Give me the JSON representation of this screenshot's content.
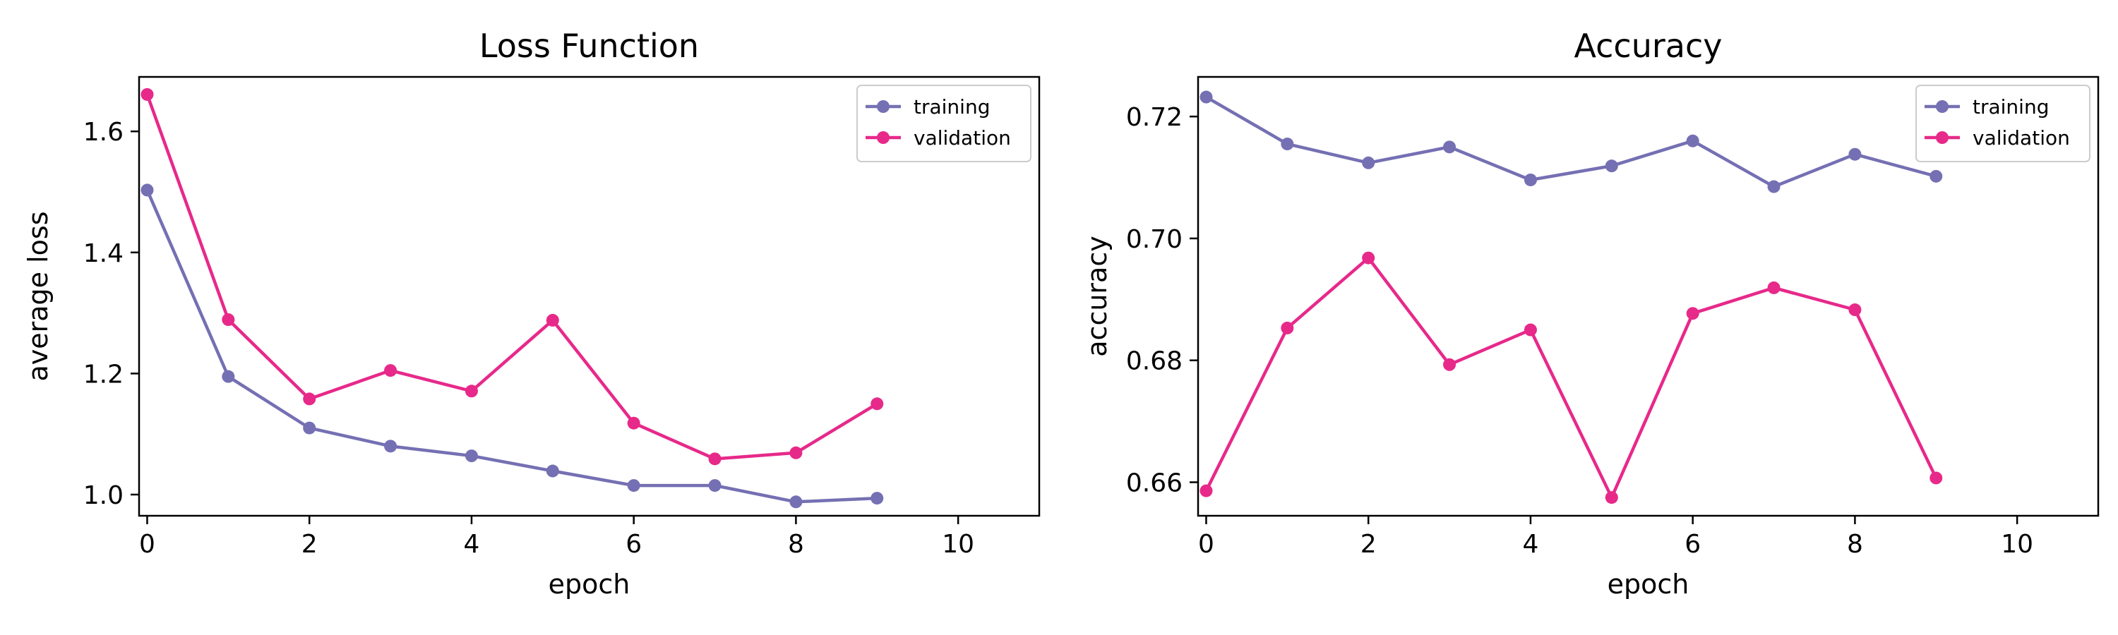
{
  "chart_data": [
    {
      "type": "line",
      "title": "Loss Function",
      "xlabel": "epoch",
      "ylabel": "average loss",
      "x": [
        0,
        1,
        2,
        3,
        4,
        5,
        6,
        7,
        8,
        9
      ],
      "xlim": [
        -0.1,
        11
      ],
      "ylim": [
        0.965,
        1.69
      ],
      "xticks": [
        0,
        2,
        4,
        6,
        8,
        10
      ],
      "yticks": [
        1.0,
        1.2,
        1.4,
        1.6
      ],
      "ytick_labels": [
        "1.0",
        "1.2",
        "1.4",
        "1.6"
      ],
      "grid": false,
      "legend": "top-right",
      "series": [
        {
          "name": "training",
          "color": "#7570b3",
          "values": [
            1.503,
            1.195,
            1.11,
            1.08,
            1.064,
            1.039,
            1.015,
            1.015,
            0.988,
            0.994
          ]
        },
        {
          "name": "validation",
          "color": "#e7298a",
          "values": [
            1.661,
            1.289,
            1.158,
            1.205,
            1.171,
            1.288,
            1.118,
            1.059,
            1.069,
            1.15
          ]
        }
      ]
    },
    {
      "type": "line",
      "title": "Accuracy",
      "xlabel": "epoch",
      "ylabel": "accuracy",
      "x": [
        0,
        1,
        2,
        3,
        4,
        5,
        6,
        7,
        8,
        9
      ],
      "xlim": [
        -0.1,
        11
      ],
      "ylim": [
        0.6545,
        0.7265
      ],
      "xticks": [
        0,
        2,
        4,
        6,
        8,
        10
      ],
      "yticks": [
        0.66,
        0.68,
        0.7,
        0.72
      ],
      "ytick_labels": [
        "0.66",
        "0.68",
        "0.70",
        "0.72"
      ],
      "grid": false,
      "legend": "top-right",
      "series": [
        {
          "name": "training",
          "color": "#7570b3",
          "values": [
            0.7232,
            0.7155,
            0.7124,
            0.715,
            0.7096,
            0.7119,
            0.716,
            0.7085,
            0.7138,
            0.7102
          ]
        },
        {
          "name": "validation",
          "color": "#e7298a",
          "values": [
            0.6586,
            0.6853,
            0.6968,
            0.6793,
            0.685,
            0.6575,
            0.6877,
            0.6919,
            0.6883,
            0.6607
          ]
        }
      ]
    }
  ]
}
